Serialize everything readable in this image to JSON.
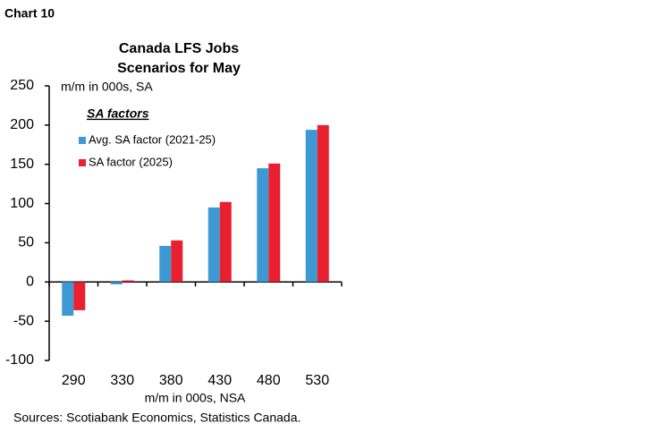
{
  "chart_data": {
    "type": "bar",
    "chart_label": "Chart 10",
    "title": "Canada LFS Jobs",
    "subtitle": "Scenarios for May",
    "y_label": "m/m in 000s, SA",
    "x_label": "m/m in 000s, NSA",
    "source": "Sources: Scotiabank Economics, Statistics Canada.",
    "legend_title": "SA factors",
    "legend": "upper left",
    "categories": [
      "290",
      "330",
      "380",
      "430",
      "480",
      "530"
    ],
    "series": [
      {
        "name": "Avg. SA factor (2021-25)",
        "color": "#3d99d3",
        "values": [
          -43,
          -3,
          46,
          95,
          145,
          194
        ]
      },
      {
        "name": "SA factor (2025)",
        "color": "#e8202f",
        "values": [
          -36,
          2,
          53,
          102,
          151,
          200
        ]
      }
    ],
    "ylim": [
      -100,
      250
    ],
    "yticks": [
      -100,
      -50,
      0,
      50,
      100,
      150,
      200,
      250
    ],
    "grid": false
  }
}
